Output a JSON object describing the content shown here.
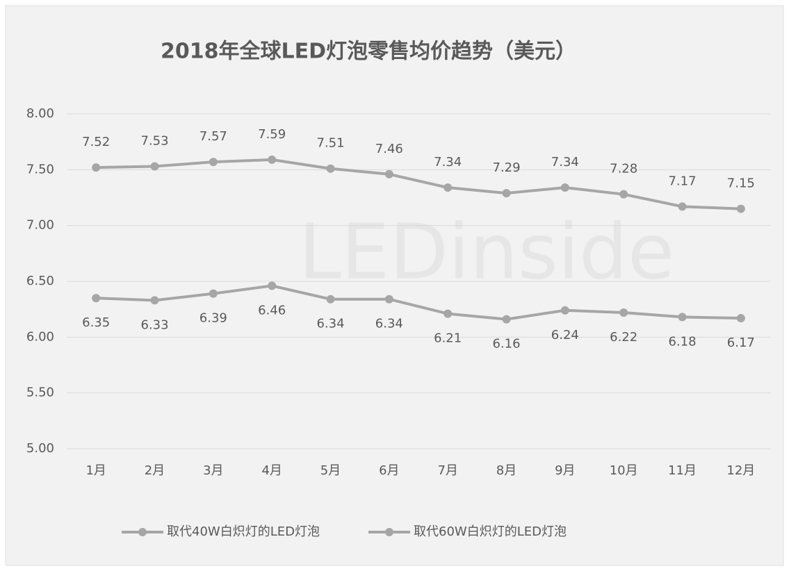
{
  "chart_data": {
    "type": "line",
    "title": "2018年全球LED灯泡零售均价趋势（美元）",
    "watermark": "LEDinside",
    "categories": [
      "1月",
      "2月",
      "3月",
      "4月",
      "5月",
      "6月",
      "7月",
      "8月",
      "9月",
      "10月",
      "11月",
      "12月"
    ],
    "series": [
      {
        "name": "取代40W白炽灯的LED灯泡",
        "color": "#a6a6a6",
        "values": [
          6.35,
          6.33,
          6.39,
          6.46,
          6.34,
          6.34,
          6.21,
          6.16,
          6.24,
          6.22,
          6.18,
          6.17
        ]
      },
      {
        "name": "取代60W白炽灯的LED灯泡",
        "color": "#a6a6a6",
        "values": [
          7.52,
          7.53,
          7.57,
          7.59,
          7.51,
          7.46,
          7.34,
          7.29,
          7.34,
          7.28,
          7.17,
          7.15
        ]
      }
    ],
    "ylim": [
      5,
      8
    ],
    "yticks": [
      {
        "value": 5,
        "label": "5.00"
      },
      {
        "value": 5.5,
        "label": "5.50"
      },
      {
        "value": 6,
        "label": "6.00"
      },
      {
        "value": 6.5,
        "label": "6.50"
      },
      {
        "value": 7,
        "label": "7.00"
      },
      {
        "value": 7.5,
        "label": "7.50"
      },
      {
        "value": 8,
        "label": "8.00"
      }
    ],
    "grid": true,
    "legend": "bottom"
  }
}
